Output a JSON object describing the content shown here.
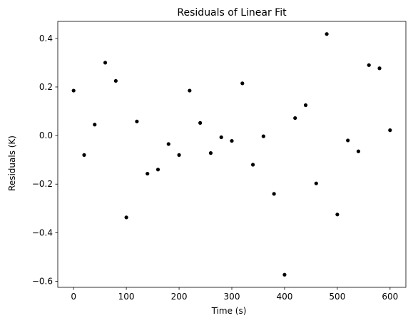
{
  "chart_data": {
    "type": "scatter",
    "title": "Residuals of Linear Fit",
    "xlabel": "Time (s)",
    "ylabel": "Residuals (K)",
    "xlim": [
      -30,
      630
    ],
    "ylim": [
      -0.625,
      0.47
    ],
    "xticks": [
      0,
      100,
      200,
      300,
      400,
      500,
      600
    ],
    "yticks": [
      -0.6,
      -0.4,
      -0.2,
      0.0,
      0.2,
      0.4
    ],
    "ytick_labels": [
      "−0.6",
      "−0.4",
      "−0.2",
      "0.0",
      "0.2",
      "0.4"
    ],
    "grid": false,
    "marker_color": "#000000",
    "series": [
      {
        "x": [
          0,
          20,
          40,
          60,
          80,
          100,
          120,
          140,
          160,
          180,
          200,
          220,
          240,
          260,
          280,
          300,
          320,
          340,
          360,
          380,
          400,
          420,
          440,
          460,
          480,
          500,
          520,
          540,
          560,
          580,
          600
        ],
        "y": [
          0.185,
          -0.08,
          0.045,
          0.3,
          0.225,
          -0.337,
          0.058,
          -0.157,
          -0.14,
          -0.035,
          -0.08,
          0.185,
          0.052,
          -0.072,
          -0.007,
          -0.022,
          0.215,
          -0.12,
          -0.003,
          -0.24,
          -0.573,
          0.072,
          0.125,
          -0.197,
          0.418,
          -0.325,
          -0.02,
          -0.065,
          0.29,
          0.277,
          0.022
        ]
      }
    ]
  }
}
